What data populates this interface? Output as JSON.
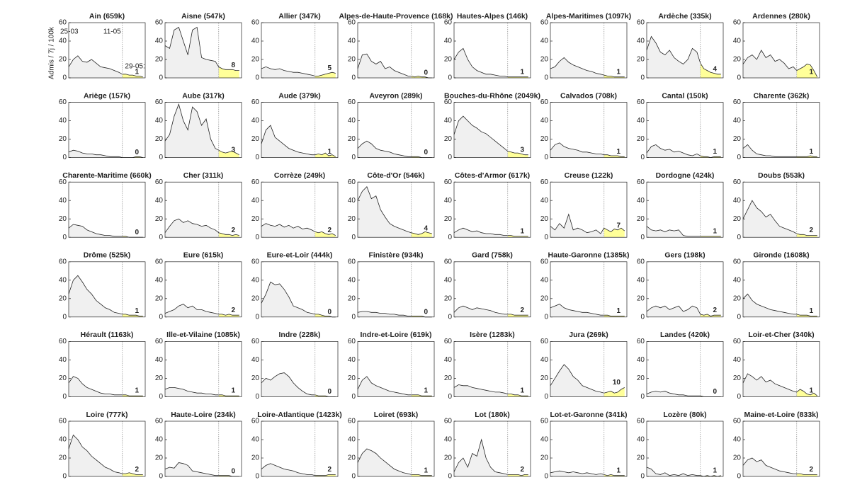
{
  "chart_data": {
    "type": "area-multiples",
    "ylabel": "Admis / 7j / 100k",
    "x": [
      "25-03",
      "29-03",
      "02-04",
      "06-04",
      "10-04",
      "14-04",
      "18-04",
      "22-04",
      "26-04",
      "30-04",
      "04-05",
      "08-05",
      "11-05",
      "14-05",
      "17-05",
      "20-05",
      "23-05",
      "26-05",
      "29-05"
    ],
    "xlim": [
      "25-03",
      "31-05"
    ],
    "xticks": [
      "25-03",
      "11-05",
      {
        "value": "29-05",
        "label": "29-05:"
      }
    ],
    "highlight_from": "11-05",
    "ylim": [
      0,
      60
    ],
    "yticks": [
      0,
      20,
      40,
      60
    ],
    "area_color": "#f0f0f0",
    "highlight_color": "#ffff99",
    "line_color": "#222222",
    "panels": [
      {
        "title": "Ain (659k)",
        "values": [
          12,
          20,
          24,
          18,
          17,
          20,
          16,
          12,
          11,
          10,
          8,
          6,
          4,
          4,
          3,
          3,
          2,
          2,
          1
        ]
      },
      {
        "title": "Aisne (547k)",
        "values": [
          35,
          32,
          52,
          55,
          40,
          25,
          52,
          55,
          22,
          20,
          19,
          18,
          12,
          10,
          9,
          9,
          9,
          8,
          8
        ]
      },
      {
        "title": "Allier (347k)",
        "values": [
          10,
          12,
          10,
          9,
          10,
          8,
          7,
          6,
          6,
          5,
          4,
          3,
          2,
          2,
          3,
          4,
          5,
          6,
          5
        ]
      },
      {
        "title": "Alpes-de-Haute-Provence (168k)",
        "values": [
          10,
          25,
          26,
          18,
          15,
          18,
          10,
          12,
          8,
          6,
          4,
          2,
          2,
          1,
          2,
          1,
          1,
          0,
          0
        ]
      },
      {
        "title": "Hautes-Alpes (146k)",
        "values": [
          20,
          28,
          32,
          20,
          12,
          8,
          6,
          4,
          4,
          3,
          2,
          2,
          1,
          1,
          1,
          1,
          1,
          1,
          1
        ]
      },
      {
        "title": "Alpes-Maritimes (1097k)",
        "values": [
          10,
          12,
          18,
          22,
          17,
          14,
          12,
          10,
          8,
          7,
          5,
          4,
          3,
          2,
          2,
          1,
          1,
          1,
          1
        ]
      },
      {
        "title": "Ardèche (335k)",
        "values": [
          30,
          45,
          38,
          28,
          25,
          30,
          22,
          18,
          15,
          20,
          32,
          28,
          16,
          10,
          8,
          6,
          5,
          4,
          4
        ]
      },
      {
        "title": "Ardennes (280k)",
        "values": [
          15,
          22,
          25,
          20,
          30,
          22,
          25,
          18,
          20,
          16,
          10,
          12,
          8,
          10,
          12,
          15,
          14,
          8,
          1
        ]
      },
      {
        "title": "Ariège (157k)",
        "values": [
          6,
          8,
          7,
          5,
          4,
          4,
          3,
          3,
          2,
          1,
          1,
          1,
          0,
          0,
          0,
          0,
          1,
          1,
          0
        ]
      },
      {
        "title": "Aube (317k)",
        "values": [
          18,
          25,
          45,
          58,
          40,
          30,
          55,
          50,
          35,
          42,
          20,
          10,
          8,
          6,
          5,
          6,
          7,
          5,
          3
        ]
      },
      {
        "title": "Aude (379k)",
        "values": [
          15,
          30,
          35,
          22,
          18,
          14,
          10,
          8,
          6,
          5,
          4,
          3,
          3,
          4,
          3,
          5,
          2,
          3,
          1
        ]
      },
      {
        "title": "Aveyron (289k)",
        "values": [
          10,
          15,
          18,
          15,
          10,
          8,
          7,
          6,
          4,
          3,
          2,
          1,
          1,
          1,
          1,
          0,
          0,
          0,
          0
        ]
      },
      {
        "title": "Bouches-du-Rhône (2049k)",
        "values": [
          25,
          40,
          45,
          40,
          35,
          32,
          28,
          26,
          22,
          18,
          14,
          10,
          7,
          6,
          5,
          5,
          4,
          3,
          3
        ]
      },
      {
        "title": "Calvados (708k)",
        "values": [
          8,
          14,
          16,
          12,
          10,
          9,
          8,
          6,
          6,
          5,
          4,
          4,
          3,
          3,
          2,
          2,
          2,
          1,
          1
        ]
      },
      {
        "title": "Cantal (150k)",
        "values": [
          5,
          12,
          14,
          10,
          8,
          9,
          6,
          7,
          5,
          3,
          2,
          4,
          2,
          1,
          1,
          0,
          1,
          1,
          1
        ]
      },
      {
        "title": "Charente (362k)",
        "values": [
          10,
          14,
          8,
          4,
          3,
          2,
          2,
          1,
          1,
          1,
          1,
          1,
          1,
          1,
          1,
          1,
          2,
          1,
          1
        ]
      },
      {
        "title": "Charente-Maritime (660k)",
        "values": [
          10,
          14,
          13,
          12,
          8,
          6,
          4,
          3,
          2,
          2,
          1,
          1,
          1,
          1,
          0,
          0,
          0,
          0,
          0
        ]
      },
      {
        "title": "Cher (311k)",
        "values": [
          5,
          12,
          18,
          20,
          16,
          18,
          15,
          14,
          12,
          13,
          10,
          8,
          5,
          4,
          3,
          3,
          2,
          3,
          2
        ]
      },
      {
        "title": "Corrèze (249k)",
        "values": [
          12,
          15,
          13,
          12,
          14,
          11,
          13,
          10,
          12,
          9,
          10,
          8,
          6,
          5,
          6,
          4,
          3,
          4,
          2
        ]
      },
      {
        "title": "Côte-d'Or (546k)",
        "values": [
          40,
          50,
          55,
          42,
          45,
          30,
          22,
          15,
          12,
          10,
          8,
          6,
          5,
          4,
          3,
          4,
          6,
          5,
          4
        ]
      },
      {
        "title": "Côtes-d'Armor (617k)",
        "values": [
          5,
          8,
          10,
          8,
          6,
          7,
          5,
          4,
          4,
          3,
          3,
          2,
          2,
          2,
          1,
          1,
          1,
          1,
          1
        ]
      },
      {
        "title": "Creuse (122k)",
        "values": [
          12,
          8,
          15,
          10,
          25,
          8,
          10,
          8,
          5,
          6,
          8,
          4,
          10,
          8,
          6,
          9,
          8,
          10,
          7
        ]
      },
      {
        "title": "Dordogne (424k)",
        "values": [
          12,
          8,
          7,
          8,
          6,
          8,
          7,
          8,
          2,
          1,
          1,
          1,
          1,
          1,
          1,
          1,
          1,
          1,
          1
        ]
      },
      {
        "title": "Doubs (553k)",
        "values": [
          20,
          30,
          40,
          32,
          28,
          22,
          25,
          18,
          12,
          10,
          8,
          6,
          4,
          3,
          3,
          2,
          2,
          2,
          2
        ]
      },
      {
        "title": "Drôme (525k)",
        "values": [
          25,
          40,
          45,
          38,
          30,
          25,
          18,
          14,
          10,
          8,
          5,
          4,
          3,
          3,
          2,
          2,
          2,
          1,
          1
        ]
      },
      {
        "title": "Eure (615k)",
        "values": [
          4,
          6,
          8,
          12,
          14,
          10,
          12,
          8,
          8,
          6,
          5,
          4,
          3,
          3,
          2,
          3,
          2,
          2,
          2
        ]
      },
      {
        "title": "Eure-et-Loir (444k)",
        "values": [
          15,
          25,
          38,
          35,
          36,
          30,
          22,
          12,
          10,
          8,
          5,
          4,
          3,
          3,
          2,
          1,
          1,
          0,
          0
        ]
      },
      {
        "title": "Finistère (934k)",
        "values": [
          5,
          6,
          6,
          5,
          5,
          4,
          4,
          3,
          3,
          2,
          2,
          1,
          1,
          1,
          1,
          1,
          0,
          0,
          0
        ]
      },
      {
        "title": "Gard (758k)",
        "values": [
          5,
          10,
          12,
          10,
          8,
          10,
          9,
          8,
          7,
          5,
          4,
          3,
          3,
          3,
          2,
          2,
          2,
          2,
          2
        ]
      },
      {
        "title": "Haute-Garonne (1385k)",
        "values": [
          10,
          12,
          14,
          10,
          8,
          7,
          6,
          5,
          5,
          4,
          3,
          2,
          2,
          2,
          1,
          1,
          1,
          1,
          1
        ]
      },
      {
        "title": "Gers (198k)",
        "values": [
          6,
          10,
          12,
          10,
          12,
          8,
          10,
          12,
          6,
          8,
          12,
          10,
          3,
          2,
          3,
          1,
          2,
          2,
          2
        ]
      },
      {
        "title": "Gironde (1608k)",
        "values": [
          20,
          25,
          18,
          14,
          12,
          10,
          8,
          7,
          6,
          5,
          4,
          3,
          3,
          2,
          2,
          2,
          1,
          1,
          1
        ]
      },
      {
        "title": "Hérault (1163k)",
        "values": [
          15,
          22,
          20,
          14,
          10,
          8,
          6,
          4,
          3,
          3,
          2,
          2,
          2,
          2,
          1,
          1,
          1,
          1,
          1
        ]
      },
      {
        "title": "Ille-et-Vilaine (1085k)",
        "values": [
          8,
          10,
          10,
          9,
          8,
          6,
          5,
          4,
          4,
          3,
          3,
          2,
          2,
          2,
          1,
          1,
          1,
          1,
          1
        ]
      },
      {
        "title": "Indre (228k)",
        "values": [
          15,
          20,
          18,
          22,
          25,
          26,
          22,
          15,
          10,
          6,
          3,
          2,
          2,
          1,
          1,
          1,
          0,
          0,
          0
        ]
      },
      {
        "title": "Indre-et-Loire (619k)",
        "values": [
          8,
          18,
          22,
          15,
          12,
          10,
          8,
          6,
          5,
          4,
          3,
          2,
          2,
          2,
          2,
          1,
          1,
          1,
          1
        ]
      },
      {
        "title": "Isère (1283k)",
        "values": [
          10,
          13,
          12,
          12,
          10,
          9,
          8,
          7,
          6,
          5,
          5,
          4,
          3,
          3,
          2,
          2,
          1,
          1,
          1
        ]
      },
      {
        "title": "Jura (269k)",
        "values": [
          12,
          20,
          28,
          35,
          30,
          22,
          18,
          12,
          10,
          8,
          6,
          5,
          4,
          5,
          6,
          4,
          5,
          8,
          10
        ]
      },
      {
        "title": "Landes (420k)",
        "values": [
          3,
          5,
          6,
          5,
          6,
          4,
          3,
          2,
          2,
          1,
          1,
          1,
          1,
          0,
          0,
          0,
          0,
          0,
          0
        ]
      },
      {
        "title": "Loir-et-Cher (340k)",
        "values": [
          15,
          25,
          22,
          18,
          22,
          16,
          18,
          14,
          12,
          10,
          8,
          6,
          5,
          8,
          6,
          3,
          2,
          4,
          1
        ]
      },
      {
        "title": "Loire (777k)",
        "values": [
          30,
          45,
          40,
          32,
          28,
          22,
          18,
          14,
          10,
          8,
          5,
          4,
          3,
          3,
          4,
          3,
          2,
          2,
          2
        ]
      },
      {
        "title": "Haute-Loire (234k)",
        "values": [
          8,
          10,
          9,
          15,
          14,
          12,
          6,
          5,
          4,
          3,
          2,
          1,
          1,
          1,
          1,
          1,
          0,
          0,
          0
        ]
      },
      {
        "title": "Loire-Atlantique (1423k)",
        "values": [
          8,
          12,
          14,
          12,
          10,
          8,
          7,
          6,
          4,
          3,
          2,
          2,
          1,
          1,
          1,
          1,
          2,
          2,
          2
        ]
      },
      {
        "title": "Loiret (693k)",
        "values": [
          15,
          25,
          30,
          28,
          25,
          20,
          16,
          12,
          8,
          6,
          4,
          3,
          2,
          2,
          2,
          1,
          1,
          1,
          1
        ]
      },
      {
        "title": "Lot (180k)",
        "values": [
          5,
          15,
          20,
          10,
          25,
          22,
          40,
          20,
          10,
          5,
          4,
          3,
          2,
          2,
          2,
          2,
          1,
          2,
          2
        ]
      },
      {
        "title": "Lot-et-Garonne (341k)",
        "values": [
          4,
          5,
          6,
          5,
          4,
          5,
          4,
          3,
          4,
          3,
          2,
          3,
          2,
          1,
          2,
          1,
          1,
          1,
          1
        ]
      },
      {
        "title": "Lozère (80k)",
        "values": [
          10,
          8,
          3,
          2,
          4,
          1,
          2,
          1,
          3,
          1,
          2,
          1,
          1,
          0,
          1,
          0,
          1,
          0,
          1
        ]
      },
      {
        "title": "Maine-et-Loire (833k)",
        "values": [
          12,
          18,
          20,
          16,
          18,
          12,
          10,
          8,
          6,
          5,
          4,
          3,
          3,
          3,
          2,
          2,
          2,
          2,
          2
        ]
      }
    ]
  }
}
